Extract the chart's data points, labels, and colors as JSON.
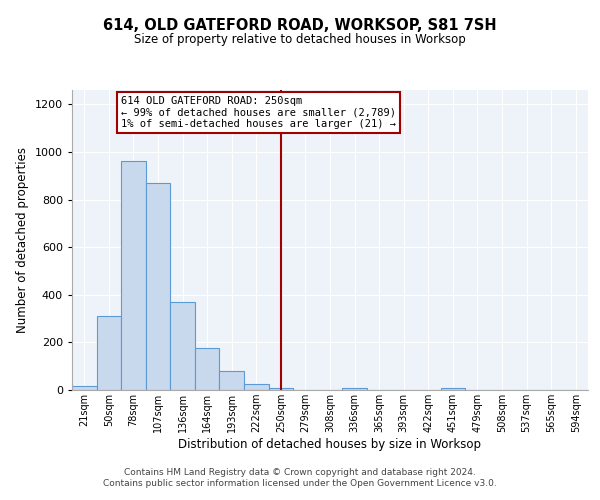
{
  "title": "614, OLD GATEFORD ROAD, WORKSOP, S81 7SH",
  "subtitle": "Size of property relative to detached houses in Worksop",
  "xlabel": "Distribution of detached houses by size in Worksop",
  "ylabel": "Number of detached properties",
  "bar_labels": [
    "21sqm",
    "50sqm",
    "78sqm",
    "107sqm",
    "136sqm",
    "164sqm",
    "193sqm",
    "222sqm",
    "250sqm",
    "279sqm",
    "308sqm",
    "336sqm",
    "365sqm",
    "393sqm",
    "422sqm",
    "451sqm",
    "479sqm",
    "508sqm",
    "537sqm",
    "565sqm",
    "594sqm"
  ],
  "bar_values": [
    15,
    310,
    960,
    870,
    370,
    175,
    80,
    25,
    10,
    0,
    0,
    10,
    0,
    0,
    0,
    10,
    0,
    0,
    0,
    0,
    0
  ],
  "bar_color": "#c9d9ed",
  "bar_edge_color": "#5b9bd5",
  "vline_x": 8,
  "vline_color": "#a00000",
  "annotation_text": "614 OLD GATEFORD ROAD: 250sqm\n← 99% of detached houses are smaller (2,789)\n1% of semi-detached houses are larger (21) →",
  "annotation_box_color": "#ffffff",
  "annotation_box_edge": "#a00000",
  "ylim": [
    0,
    1260
  ],
  "yticks": [
    0,
    200,
    400,
    600,
    800,
    1000,
    1200
  ],
  "footer_line1": "Contains HM Land Registry data © Crown copyright and database right 2024.",
  "footer_line2": "Contains public sector information licensed under the Open Government Licence v3.0.",
  "bg_color": "#eef3f9",
  "fig_bg_color": "#ffffff"
}
